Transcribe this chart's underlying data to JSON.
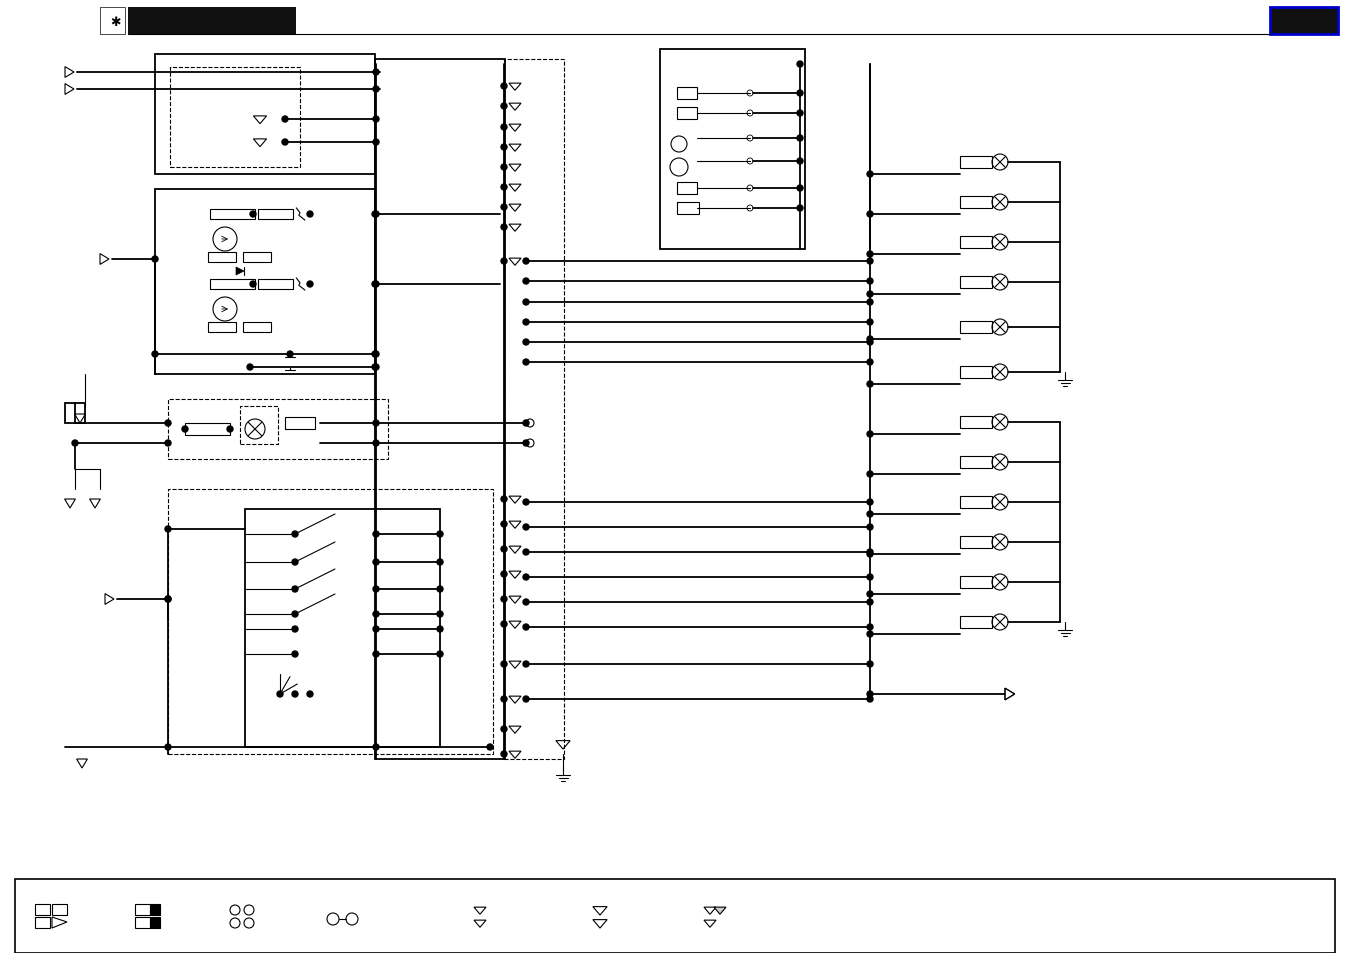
{
  "bg_color": "#ffffff",
  "line_color": "#000000",
  "header_blue_border": "#0000cc",
  "lw_main": 1.3,
  "lw_thin": 0.8,
  "lw_thick": 2.0,
  "dot_r": 3.0,
  "conn_size": 11
}
